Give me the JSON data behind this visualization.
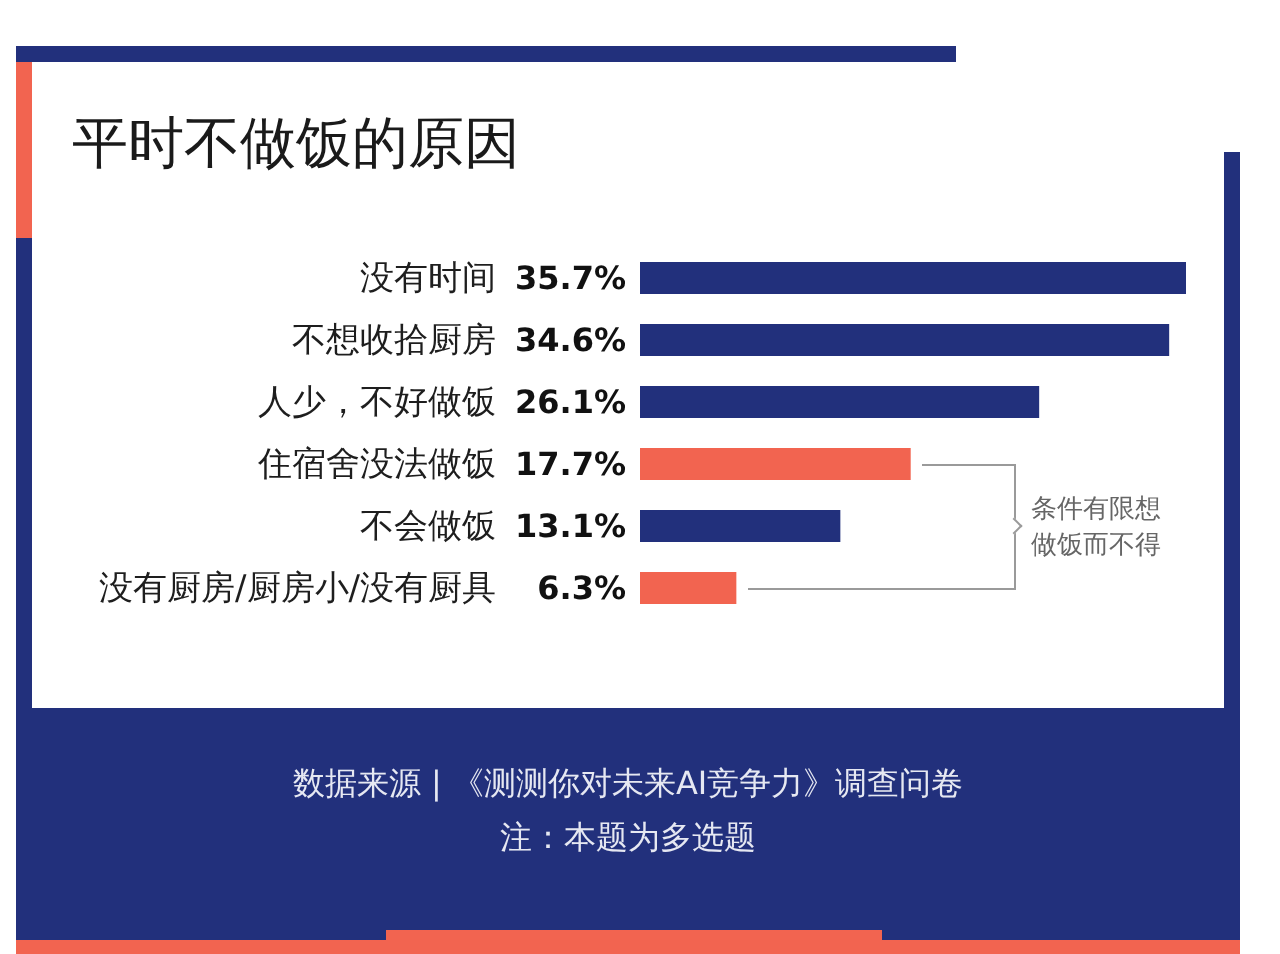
{
  "chart_data": {
    "type": "bar",
    "orientation": "horizontal",
    "title": "平时不做饭的原因",
    "categories": [
      "没有时间",
      "不想收拾厨房",
      "人少，不好做饭",
      "住宿舍没法做饭",
      "不会做饭",
      "没有厨房/厨房小/没有厨具"
    ],
    "values": [
      35.7,
      34.6,
      26.1,
      17.7,
      13.1,
      6.3
    ],
    "colors": [
      "#22307c",
      "#22307c",
      "#22307c",
      "#f26450",
      "#22307c",
      "#f26450"
    ],
    "value_labels": [
      "35.7%",
      "34.6%",
      "26.1%",
      "17.7%",
      "13.1%",
      "6.3%"
    ],
    "annotations": [
      "条件有限想做饭而不得",
      "数据来源 | 《测测你对未来AI竞争力》调查问卷",
      "注：本题为多选题"
    ]
  }
}
